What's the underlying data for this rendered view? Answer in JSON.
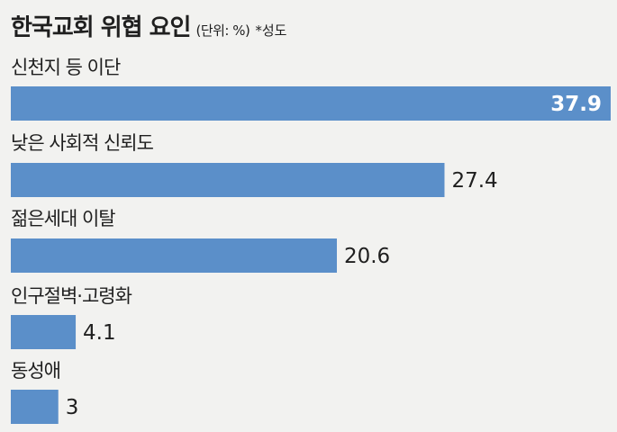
{
  "chart_data": {
    "type": "bar",
    "orientation": "horizontal",
    "title": "한국교회 위협 요인",
    "unit": "(단위: %)",
    "note": "*성도",
    "categories": [
      "신천지 등 이단",
      "낮은 사회적 신뢰도",
      "젊은세대 이탈",
      "인구절벽·고령화",
      "동성애"
    ],
    "values": [
      37.9,
      27.4,
      20.6,
      4.1,
      3
    ],
    "value_labels": [
      "37.9",
      "27.4",
      "20.6",
      "4.1",
      "3"
    ],
    "xlim": [
      0,
      37.9
    ],
    "bar_color": "#5b8fc9",
    "grid": false,
    "legend": "none"
  }
}
